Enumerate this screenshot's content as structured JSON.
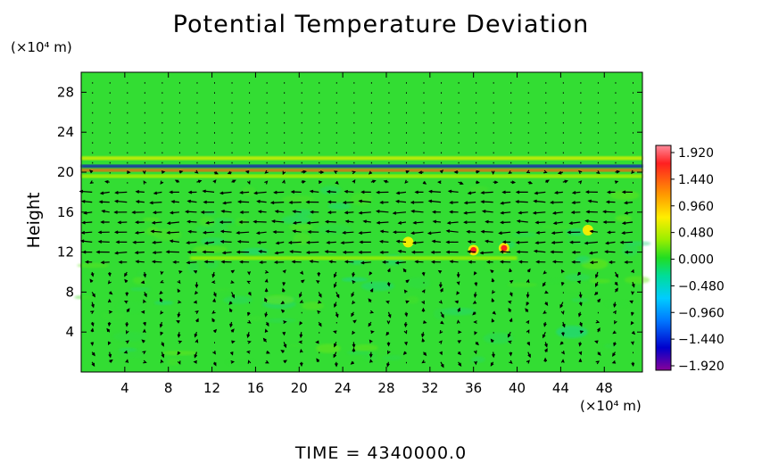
{
  "chart_data": {
    "type": "heatmap",
    "title": "Potential Temperature Deviation",
    "ylabel": "Height",
    "y_unit": "(×10⁴ m)",
    "x_unit": "(×10⁴ m)",
    "xlim": [
      0,
      51.5
    ],
    "ylim": [
      0,
      30
    ],
    "x_ticks": [
      4,
      8,
      12,
      16,
      20,
      24,
      28,
      32,
      36,
      40,
      44,
      48
    ],
    "y_ticks": [
      4,
      8,
      12,
      16,
      20,
      24,
      28
    ],
    "footer": "TIME  =  4340000.0",
    "colorbar": {
      "labels": [
        "1.920",
        "1.440",
        "0.960",
        "0.480",
        "0.000",
        "−0.480",
        "−0.960",
        "−1.440",
        "−1.920"
      ],
      "values": [
        1.92,
        1.44,
        0.96,
        0.48,
        0.0,
        -0.48,
        -0.96,
        -1.44,
        -1.92
      ]
    },
    "background_value": 0.0,
    "colors": {
      "background_field": "#33dd33",
      "positive_high": "#ff2a2a",
      "positive_mid": "#ffcc00",
      "negative_mid": "#00bbff",
      "negative_high": "#0000cc",
      "arrows": "#000000"
    },
    "bands": [
      {
        "y": 21.4,
        "value": 0.75,
        "x_range": [
          0,
          51.5
        ]
      },
      {
        "y": 20.6,
        "value": -1.5,
        "x_range": [
          0,
          51.5
        ]
      },
      {
        "y": 20.2,
        "value": 1.7,
        "x_range": [
          0,
          51.5
        ]
      },
      {
        "y": 19.6,
        "value": 0.55,
        "x_range": [
          0,
          51.5
        ]
      },
      {
        "y": 11.4,
        "value": 0.5,
        "x_range": [
          10,
          40
        ]
      }
    ],
    "hotspots": [
      {
        "x": 36.0,
        "y": 12.2,
        "value": 1.9
      },
      {
        "x": 38.8,
        "y": 12.4,
        "value": 1.9
      },
      {
        "x": 30.0,
        "y": 13.0,
        "value": 0.9
      },
      {
        "x": 46.5,
        "y": 14.2,
        "value": 0.9
      }
    ]
  }
}
